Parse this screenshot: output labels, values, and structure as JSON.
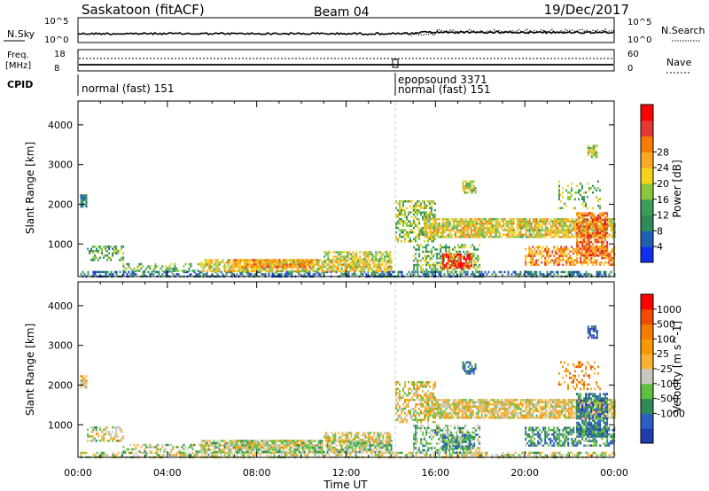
{
  "header": {
    "station": "Saskatoon (fitACF)",
    "beam": "Beam 04",
    "date": "19/Dec/2017"
  },
  "strips": {
    "nsky_label": "N.Sky",
    "nsky_ticks": [
      "10^5",
      "10^0"
    ],
    "nsearch_label": "N.Search",
    "nsearch_ticks": [
      "10^5",
      "10^0"
    ],
    "freq_label": "Freq.",
    "freq_unit": "[MHz]",
    "freq_ticks": [
      "18",
      "8"
    ],
    "nave_label": "Nave",
    "nave_ticks": [
      "60",
      "0"
    ],
    "cpid_label": "CPID",
    "cpid_segments": [
      "normal (fast) 151",
      "epopsound 3371",
      "normal (fast) 151"
    ]
  },
  "chart_data": [
    {
      "type": "heatmap",
      "name": "power",
      "ylabel": "Slant Range [km]",
      "xlabel": "Time UT",
      "x_ticks": [
        "00:00",
        "04:00",
        "08:00",
        "12:00",
        "16:00",
        "20:00",
        "00:00"
      ],
      "x_range_hours": [
        0,
        24
      ],
      "y_ticks": [
        1000,
        2000,
        3000,
        4000
      ],
      "ylim": [
        180,
        4600
      ],
      "colorbar": {
        "label": "Power [dB]",
        "ticks": [
          "4",
          "8",
          "12",
          "16",
          "20",
          "24",
          "28"
        ],
        "colors": [
          "#1030f0",
          "#1f5fb0",
          "#2e8b57",
          "#3a9d5a",
          "#8cc63f",
          "#f5d31c",
          "#f9a825",
          "#f57c00",
          "#e53935",
          "#ff0000"
        ]
      }
    },
    {
      "type": "heatmap",
      "name": "velocity",
      "ylabel": "Slant Range [km]",
      "xlabel": "Time UT",
      "x_ticks": [
        "00:00",
        "04:00",
        "08:00",
        "12:00",
        "16:00",
        "20:00",
        "00:00"
      ],
      "x_range_hours": [
        0,
        24
      ],
      "y_ticks": [
        1000,
        2000,
        3000,
        4000
      ],
      "ylim": [
        180,
        4600
      ],
      "colorbar": {
        "label": "Velocity [m s^-1]",
        "ticks": [
          "1000",
          "500",
          "100",
          "25",
          "-25",
          "-100",
          "-500",
          "-1000"
        ],
        "colors": [
          "#1f3fb0",
          "#2e5fc0",
          "#2e8b57",
          "#5fbf3f",
          "#c8c8c0",
          "#f9b233",
          "#f59a00",
          "#f57c00",
          "#f24a00",
          "#ff0000"
        ]
      }
    }
  ]
}
